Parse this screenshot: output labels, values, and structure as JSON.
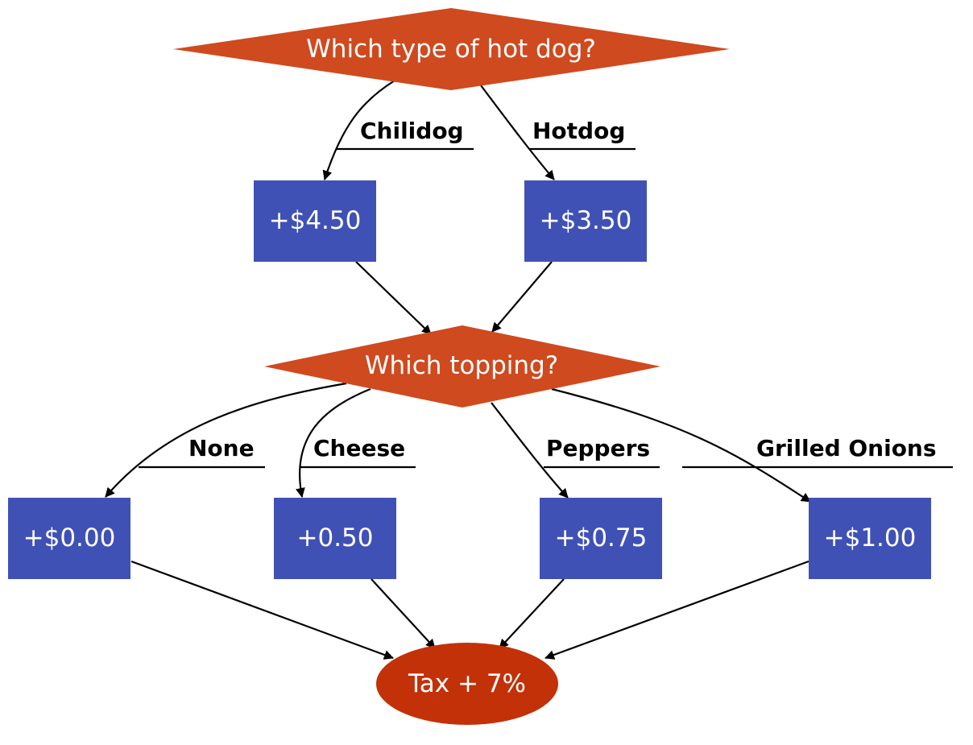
{
  "colors": {
    "decision": "#cf4a1f",
    "cost_box": "#4051b5",
    "terminal": "#c33108",
    "edge": "#000000",
    "text_on_shape": "#ffffff"
  },
  "nodes": {
    "type_question": "Which type of hot dog?",
    "chilidog_price": "+$4.50",
    "hotdog_price": "+$3.50",
    "topping_question": "Which topping?",
    "none_price": "+$0.00",
    "cheese_price": "+0.50",
    "peppers_price": "+$0.75",
    "onions_price": "+$1.00",
    "tax": "Tax + 7%"
  },
  "edge_labels": {
    "chilidog": "Chilidog",
    "hotdog": "Hotdog",
    "none": "None",
    "cheese": "Cheese",
    "peppers": "Peppers",
    "grilled_onions": "Grilled Onions"
  }
}
